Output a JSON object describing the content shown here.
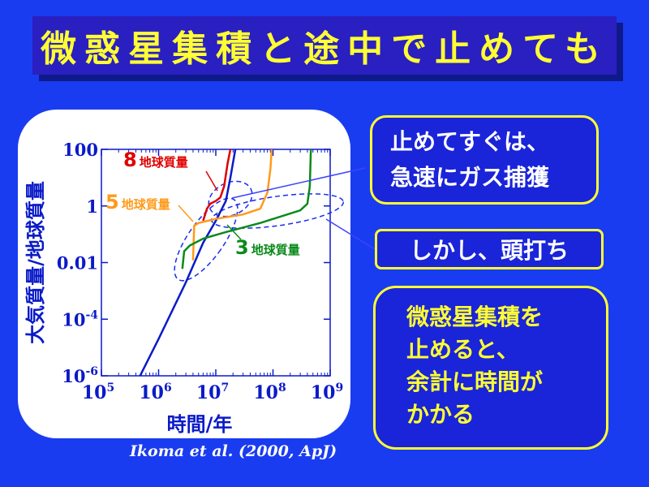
{
  "title": "微惑星集積と途中で止めても",
  "callouts": {
    "c1_line1": "止めてすぐは、",
    "c1_line2": "急速にガス捕獲",
    "c2": "しかし、頭打ち",
    "c3_line1": "微惑星集積を",
    "c3_line2": "止めると、",
    "c3_line3": "余計に時間が",
    "c3_line4": "かかる"
  },
  "citation": "Ikoma et al. (2000, ApJ)",
  "colors": {
    "background": "#1a3cf0",
    "title_text": "#ffff33",
    "blue": "#0a1ac8",
    "red": "#e00000",
    "orange": "#ff9a1a",
    "green": "#0a8a1a"
  },
  "chart_data": {
    "type": "line",
    "xscale": "log",
    "yscale": "log",
    "xlabel": "時間/年",
    "ylabel": "大気質量/地球質量",
    "xlim": [
      100000,
      1000000000
    ],
    "ylim": [
      1e-06,
      100
    ],
    "x_ticks": [
      {
        "base": "10",
        "exp": "5",
        "value": 100000
      },
      {
        "base": "10",
        "exp": "6",
        "value": 1000000
      },
      {
        "base": "10",
        "exp": "7",
        "value": 10000000
      },
      {
        "base": "10",
        "exp": "8",
        "value": 100000000
      },
      {
        "base": "10",
        "exp": "9",
        "value": 1000000000
      }
    ],
    "y_ticks": [
      {
        "label": "100",
        "base": "",
        "exp": "",
        "value": 100
      },
      {
        "label": "1",
        "base": "",
        "exp": "",
        "value": 1
      },
      {
        "label": "0.01",
        "base": "",
        "exp": "",
        "value": 0.01
      },
      {
        "label": "",
        "base": "10",
        "exp": "-4",
        "value": 0.0001
      },
      {
        "label": "",
        "base": "10",
        "exp": "-6",
        "value": 1e-06
      }
    ],
    "series": [
      {
        "name": "",
        "color": "#0a1ac8",
        "points": [
          [
            400000,
            5e-07
          ],
          [
            1000000,
            2e-05
          ],
          [
            3000000,
            0.002
          ],
          [
            6000000,
            0.05
          ],
          [
            10000000,
            0.3
          ],
          [
            15000000,
            1.5
          ],
          [
            18000000,
            10
          ],
          [
            22000000,
            100
          ]
        ]
      },
      {
        "name": "8地球質量",
        "num": "8",
        "unit": "地球質量",
        "color": "#e00000",
        "points": [
          [
            6000000,
            0.3
          ],
          [
            7000000,
            0.8
          ],
          [
            8000000,
            1.2
          ],
          [
            10000000,
            1.5
          ],
          [
            12000000,
            2
          ],
          [
            14000000,
            5
          ],
          [
            16000000,
            30
          ],
          [
            18000000,
            100
          ]
        ]
      },
      {
        "name": "5地球質量",
        "num": "5",
        "unit": "地球質量",
        "color": "#ff9a1a",
        "points": [
          [
            4000000,
            0.012
          ],
          [
            4200000,
            0.2
          ],
          [
            5000000,
            0.25
          ],
          [
            10000000,
            0.35
          ],
          [
            30000000,
            0.5
          ],
          [
            60000000,
            0.8
          ],
          [
            80000000,
            3
          ],
          [
            90000000,
            20
          ],
          [
            95000000,
            100
          ]
        ]
      },
      {
        "name": "3地球質量",
        "num": "3",
        "unit": "地球質量",
        "color": "#0a8a1a",
        "points": [
          [
            2600000,
            0.006
          ],
          [
            2800000,
            0.025
          ],
          [
            3500000,
            0.04
          ],
          [
            6000000,
            0.07
          ],
          [
            15000000,
            0.12
          ],
          [
            60000000,
            0.25
          ],
          [
            300000000,
            0.7
          ],
          [
            400000000,
            1.2
          ],
          [
            440000000,
            5
          ],
          [
            460000000,
            100
          ]
        ]
      }
    ]
  }
}
